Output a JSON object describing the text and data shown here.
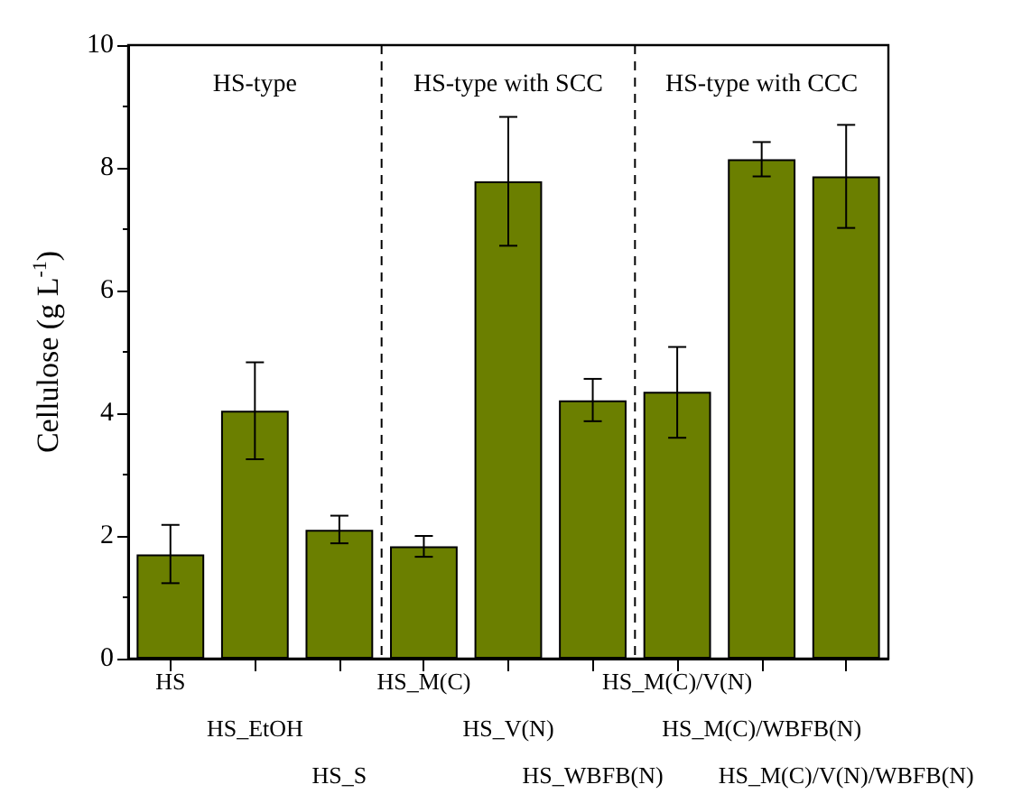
{
  "chart_data": {
    "type": "bar",
    "ylabel": "Cellulose (g L$^{-1}$)",
    "categories": [
      "HS",
      "HS_EtOH",
      "HS_S",
      "HS_M(C)",
      "HS_V(N)",
      "HS_WBFB(N)",
      "HS_M(C)/V(N)",
      "HS_M(C)/WBFB(N)",
      "HS_M(C)/V(N)/WBFB(N)"
    ],
    "values": [
      1.7,
      4.04,
      2.1,
      1.83,
      7.78,
      4.21,
      4.35,
      8.14,
      7.86
    ],
    "errors": [
      [
        1.23,
        2.18
      ],
      [
        3.25,
        4.83
      ],
      [
        1.88,
        2.33
      ],
      [
        1.66,
        2.0
      ],
      [
        6.73,
        8.83
      ],
      [
        3.87,
        4.56
      ],
      [
        3.6,
        5.08
      ],
      [
        7.86,
        8.42
      ],
      [
        7.02,
        8.7
      ]
    ],
    "color": "#6b7f00",
    "ylim": [
      0,
      10
    ],
    "yticks": [
      0,
      2,
      4,
      6,
      8,
      10
    ],
    "grid": false,
    "annotations": [
      "HS-type",
      "HS-type with SCC",
      "HS-type with CCC"
    ]
  }
}
